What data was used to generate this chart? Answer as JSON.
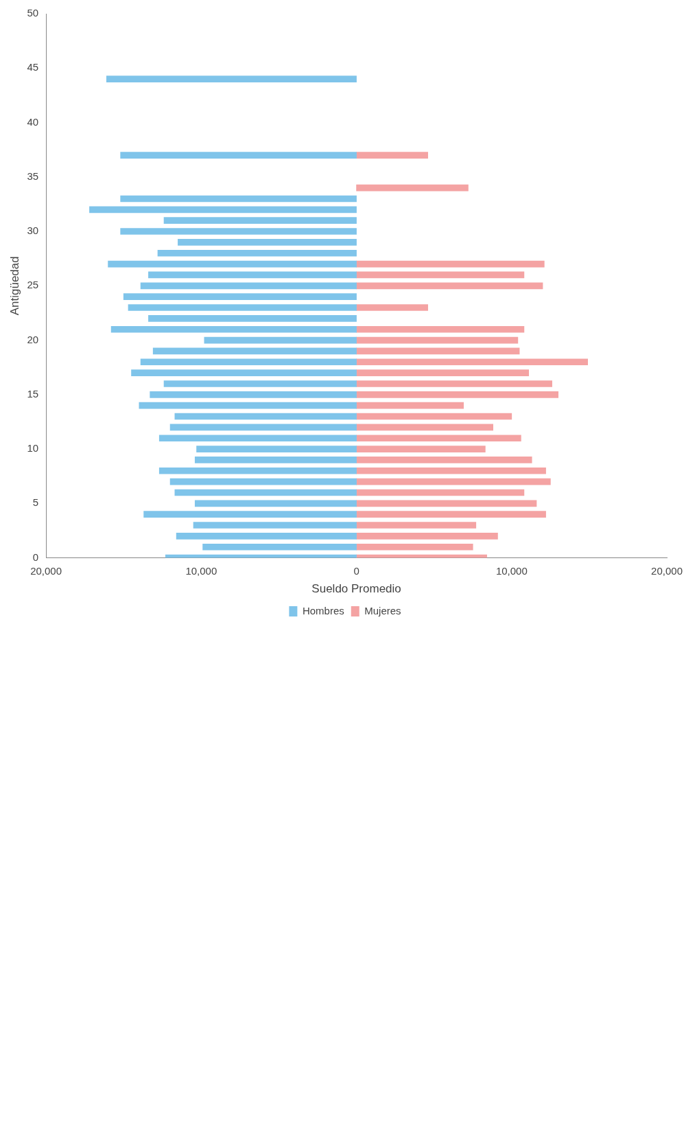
{
  "chart_data": {
    "type": "bar",
    "orientation": "horizontal",
    "xlabel": "Sueldo Promedio",
    "ylabel": "Antigüedad",
    "xlim": [
      -20000,
      20000
    ],
    "xticks": [
      {
        "value": -20000,
        "label": "20,000"
      },
      {
        "value": -10000,
        "label": "10,000"
      },
      0,
      {
        "value": 10000,
        "label": "10,000"
      },
      {
        "value": 20000,
        "label": "20,000"
      }
    ],
    "ylim": [
      0,
      50
    ],
    "yticks": [
      0,
      5,
      10,
      15,
      20,
      25,
      30,
      35,
      40,
      45,
      50
    ],
    "grid": false,
    "stacked": true,
    "legend": "bottom",
    "series": [
      {
        "name": "Hombres",
        "color": "#7fc4ea",
        "x": [
          0,
          1,
          2,
          3,
          4,
          5,
          6,
          7,
          8,
          9,
          10,
          11,
          12,
          13,
          14,
          15,
          16,
          17,
          18,
          19,
          20,
          21,
          22,
          23,
          24,
          25,
          26,
          27,
          28,
          29,
          30,
          31,
          32,
          33,
          37,
          44
        ],
        "values": [
          -12300,
          -9900,
          -11600,
          -10500,
          -13700,
          -10400,
          -11700,
          -12000,
          -12700,
          -10400,
          -10300,
          -12700,
          -12000,
          -11700,
          -14000,
          -13300,
          -12400,
          -14500,
          -13900,
          -13100,
          -9800,
          -15800,
          -13400,
          -14700,
          -15000,
          -13900,
          -13400,
          -16000,
          -12800,
          -11500,
          -15200,
          -12400,
          -17200,
          -15200,
          -15200,
          -16100
        ]
      },
      {
        "name": "Mujeres",
        "color": "#f4a3a3",
        "x": [
          0,
          1,
          2,
          3,
          4,
          5,
          6,
          7,
          8,
          9,
          10,
          11,
          12,
          13,
          14,
          15,
          16,
          17,
          18,
          19,
          20,
          21,
          23,
          25,
          26,
          27,
          34,
          37
        ],
        "values": [
          8400,
          7500,
          9100,
          7700,
          12200,
          11600,
          10800,
          12500,
          12200,
          11300,
          8300,
          10600,
          8800,
          10000,
          6900,
          13000,
          12600,
          11100,
          14900,
          10500,
          10400,
          10800,
          4600,
          12000,
          10800,
          12100,
          7200,
          4600
        ]
      }
    ]
  }
}
